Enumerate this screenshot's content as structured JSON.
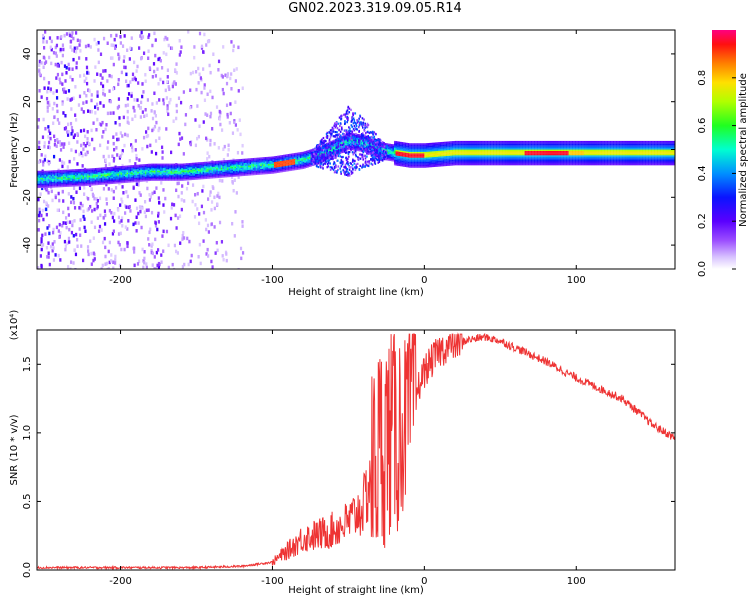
{
  "title": "GN02.2023.319.09.05.R14",
  "chart_data": [
    {
      "type": "heatmap",
      "xlabel": "Height of straight line (km)",
      "ylabel": "Frequency (Hz)",
      "xlim": [
        -255,
        165
      ],
      "ylim": [
        -50,
        50
      ],
      "xticks": [
        -200,
        -100,
        0,
        100
      ],
      "yticks": [
        -40,
        -20,
        0,
        20,
        40
      ],
      "xtick_labels": [
        "-200",
        "-100",
        "0",
        "100"
      ],
      "ytick_labels": [
        "-40",
        "-20",
        "0",
        "20",
        "40"
      ],
      "colorbar": {
        "label": "Normalized spectral amplitude",
        "range": [
          0.0,
          1.0
        ],
        "ticks": [
          0.0,
          0.2,
          0.4,
          0.6,
          0.8
        ],
        "tick_labels": [
          "0.0",
          "0.2",
          "0.4",
          "0.6",
          "0.8"
        ],
        "colors": [
          "#ffffff",
          "#b58cff",
          "#6a00ff",
          "#1a00ff",
          "#0050ff",
          "#00e0ff",
          "#00ff80",
          "#40ff00",
          "#ffff00",
          "#ff8000",
          "#ff0000",
          "#ff0080"
        ]
      },
      "ridge": {
        "x": [
          -250,
          -220,
          -200,
          -180,
          -160,
          -140,
          -120,
          -100,
          -90,
          -80,
          -70,
          -60,
          -50,
          -40,
          -30,
          -20,
          -10,
          0,
          20,
          40,
          60,
          80,
          100,
          120,
          140,
          165
        ],
        "y": [
          -12,
          -11,
          -10,
          -9,
          -9,
          -8,
          -7,
          -6,
          -5,
          -4,
          -2,
          1,
          4,
          3,
          0,
          -1,
          -2,
          -2,
          -1,
          -1,
          -1,
          -1,
          -1,
          -1,
          -1,
          -1
        ]
      },
      "noise_region_x": [
        -255,
        -120
      ]
    },
    {
      "type": "line",
      "xlabel": "Height of straight line (km)",
      "ylabel": "SNR (10 * v/v)",
      "multiplier": "(x10⁴)",
      "xlim": [
        -255,
        165
      ],
      "ylim": [
        0,
        1.75
      ],
      "xticks": [
        -200,
        -100,
        0,
        100
      ],
      "yticks": [
        0.0,
        0.5,
        1.0,
        1.5
      ],
      "xtick_labels": [
        "-200",
        "-100",
        "0",
        "100"
      ],
      "ytick_labels": [
        "0.0",
        "0.5",
        "1.0",
        "1.5"
      ],
      "series": [
        {
          "color": "#ee3333",
          "x": [
            -255,
            -200,
            -150,
            -120,
            -100,
            -90,
            -80,
            -70,
            -60,
            -50,
            -40,
            -35,
            -30,
            -25,
            -20,
            -15,
            -10,
            -5,
            0,
            10,
            20,
            30,
            40,
            50,
            60,
            70,
            80,
            90,
            100,
            110,
            120,
            130,
            140,
            150,
            165
          ],
          "y": [
            0.01,
            0.01,
            0.01,
            0.02,
            0.05,
            0.12,
            0.2,
            0.22,
            0.25,
            0.3,
            0.4,
            0.6,
            0.8,
            0.9,
            0.95,
            0.95,
            1.1,
            1.3,
            1.45,
            1.6,
            1.65,
            1.68,
            1.7,
            1.67,
            1.62,
            1.57,
            1.52,
            1.46,
            1.4,
            1.35,
            1.3,
            1.25,
            1.16,
            1.06,
            0.96
          ]
        }
      ]
    }
  ]
}
